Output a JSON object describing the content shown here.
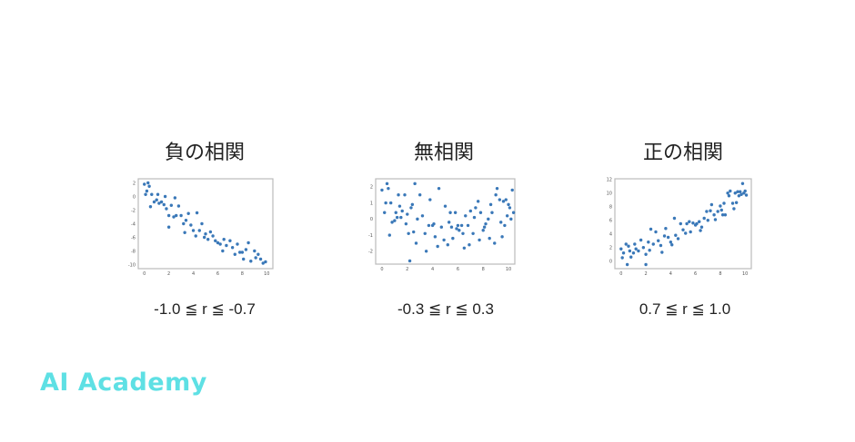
{
  "colors": {
    "point": "#3a78b8",
    "logo": "#5ee0e4",
    "frame": "#bbbbbb"
  },
  "logo": {
    "text": "AI Academy"
  },
  "chart_data": [
    {
      "type": "scatter",
      "title": "負の相関",
      "caption": "-1.0 ≦ r ≦ -0.7",
      "xlim": [
        -0.5,
        10.5
      ],
      "ylim": [
        -10.6,
        2.6
      ],
      "xticks": [
        0,
        2,
        4,
        6,
        8,
        10
      ],
      "yticks": [
        2,
        0,
        -2,
        -4,
        -6,
        -8,
        -10
      ],
      "grid": false,
      "points": [
        [
          0,
          1.8
        ],
        [
          0.3,
          2
        ],
        [
          0.4,
          1.5
        ],
        [
          0.1,
          0.3
        ],
        [
          0.2,
          0.8
        ],
        [
          0.5,
          -1.5
        ],
        [
          0.6,
          0.3
        ],
        [
          0.8,
          -0.8
        ],
        [
          1,
          -0.5
        ],
        [
          1.1,
          0.3
        ],
        [
          1.2,
          -1
        ],
        [
          1.4,
          -0.8
        ],
        [
          1.6,
          -1.2
        ],
        [
          1.7,
          0
        ],
        [
          1.8,
          -1.8
        ],
        [
          2,
          -2.8
        ],
        [
          2,
          -4.5
        ],
        [
          2.2,
          -1.3
        ],
        [
          2.4,
          -3
        ],
        [
          2.5,
          -0.2
        ],
        [
          2.6,
          -2.8
        ],
        [
          2.8,
          -1.4
        ],
        [
          3,
          -2.8
        ],
        [
          3.2,
          -4
        ],
        [
          3.3,
          -5.3
        ],
        [
          3.4,
          -3.5
        ],
        [
          3.6,
          -2.5
        ],
        [
          3.8,
          -4.2
        ],
        [
          4,
          -5
        ],
        [
          4.2,
          -5.8
        ],
        [
          4.3,
          -2.4
        ],
        [
          4.5,
          -5
        ],
        [
          4.7,
          -4
        ],
        [
          4.9,
          -6
        ],
        [
          5,
          -5.5
        ],
        [
          5.2,
          -6.3
        ],
        [
          5.4,
          -5.2
        ],
        [
          5.6,
          -5.8
        ],
        [
          5.8,
          -6.5
        ],
        [
          6,
          -6.8
        ],
        [
          6.2,
          -7
        ],
        [
          6.4,
          -8
        ],
        [
          6.5,
          -6.3
        ],
        [
          6.7,
          -7.2
        ],
        [
          7,
          -6.5
        ],
        [
          7.2,
          -7.5
        ],
        [
          7.4,
          -8.5
        ],
        [
          7.6,
          -7
        ],
        [
          7.8,
          -8.2
        ],
        [
          8,
          -8.2
        ],
        [
          8.1,
          -9.2
        ],
        [
          8.3,
          -7.8
        ],
        [
          8.5,
          -6.8
        ],
        [
          8.7,
          -9.5
        ],
        [
          9,
          -8
        ],
        [
          9.1,
          -9
        ],
        [
          9.3,
          -8.5
        ],
        [
          9.5,
          -9.2
        ],
        [
          9.7,
          -9.8
        ],
        [
          9.9,
          -9.6
        ]
      ]
    },
    {
      "type": "scatter",
      "title": "無相関",
      "caption": "-0.3 ≦ r ≦ 0.3",
      "xlim": [
        -0.5,
        10.5
      ],
      "ylim": [
        -2.8,
        2.5
      ],
      "xticks": [
        0,
        2,
        4,
        6,
        8,
        10
      ],
      "yticks": [
        2,
        1,
        0,
        -1,
        -2
      ],
      "grid": false,
      "points": [
        [
          0,
          1.8
        ],
        [
          0.2,
          0.4
        ],
        [
          0.3,
          1
        ],
        [
          0.4,
          2.2
        ],
        [
          0.5,
          1.9
        ],
        [
          0.6,
          -1
        ],
        [
          0.7,
          1
        ],
        [
          0.8,
          -0.2
        ],
        [
          1,
          -0.1
        ],
        [
          1.1,
          0.4
        ],
        [
          1.2,
          0.1
        ],
        [
          1.3,
          1.5
        ],
        [
          1.4,
          0.8
        ],
        [
          1.5,
          0.1
        ],
        [
          1.6,
          0.5
        ],
        [
          1.8,
          1.5
        ],
        [
          1.9,
          -0.3
        ],
        [
          2,
          0.3
        ],
        [
          2.1,
          -0.9
        ],
        [
          2.2,
          -2.6
        ],
        [
          2.3,
          0.7
        ],
        [
          2.4,
          0.9
        ],
        [
          2.5,
          -0.8
        ],
        [
          2.6,
          2.2
        ],
        [
          2.7,
          -1.5
        ],
        [
          2.8,
          0
        ],
        [
          3,
          1.5
        ],
        [
          3.2,
          0.2
        ],
        [
          3.4,
          -0.9
        ],
        [
          3.5,
          -2
        ],
        [
          3.7,
          -0.4
        ],
        [
          3.8,
          1.2
        ],
        [
          4,
          -0.4
        ],
        [
          4.1,
          -0.3
        ],
        [
          4.2,
          -1.1
        ],
        [
          4.4,
          -1.7
        ],
        [
          4.5,
          1.9
        ],
        [
          4.7,
          -0.5
        ],
        [
          4.9,
          -1.3
        ],
        [
          5,
          0.8
        ],
        [
          5.2,
          -1.6
        ],
        [
          5.3,
          -0.2
        ],
        [
          5.4,
          0.4
        ],
        [
          5.5,
          -0.5
        ],
        [
          5.6,
          -1.2
        ],
        [
          5.8,
          0.4
        ],
        [
          5.9,
          -0.6
        ],
        [
          6,
          -0.4
        ],
        [
          6.1,
          -0.7
        ],
        [
          6.3,
          -0.4
        ],
        [
          6.4,
          -0.9
        ],
        [
          6.5,
          -1.8
        ],
        [
          6.6,
          0.2
        ],
        [
          6.8,
          -0.4
        ],
        [
          6.9,
          -1.6
        ],
        [
          7,
          0.5
        ],
        [
          7.2,
          -0.9
        ],
        [
          7.3,
          0.1
        ],
        [
          7.4,
          0.7
        ],
        [
          7.6,
          1.1
        ],
        [
          7.7,
          -1.3
        ],
        [
          7.8,
          0.4
        ],
        [
          8,
          -0.7
        ],
        [
          8.1,
          -0.5
        ],
        [
          8.2,
          -0.3
        ],
        [
          8.4,
          0
        ],
        [
          8.5,
          -1.2
        ],
        [
          8.6,
          0.9
        ],
        [
          8.7,
          0.4
        ],
        [
          8.9,
          -1.5
        ],
        [
          9,
          1.5
        ],
        [
          9.1,
          1.9
        ],
        [
          9.3,
          1.2
        ],
        [
          9.4,
          -0.2
        ],
        [
          9.5,
          -1.1
        ],
        [
          9.6,
          1.1
        ],
        [
          9.7,
          -0.4
        ],
        [
          9.8,
          1.2
        ],
        [
          9.9,
          0.2
        ],
        [
          10,
          0.9
        ],
        [
          10.1,
          0.7
        ],
        [
          10.2,
          0
        ],
        [
          10.3,
          1.8
        ],
        [
          10.4,
          0.4
        ]
      ]
    },
    {
      "type": "scatter",
      "title": "正の相関",
      "caption": "0.7 ≦ r ≦ 1.0",
      "xlim": [
        -0.5,
        10.5
      ],
      "ylim": [
        -1.1,
        12.1
      ],
      "xticks": [
        0,
        2,
        4,
        6,
        8,
        10
      ],
      "yticks": [
        12,
        10,
        8,
        6,
        4,
        2,
        0
      ],
      "grid": false,
      "points": [
        [
          0,
          1.8
        ],
        [
          0.1,
          0.5
        ],
        [
          0.2,
          1.2
        ],
        [
          0.4,
          2.5
        ],
        [
          0.5,
          -0.5
        ],
        [
          0.6,
          2.2
        ],
        [
          0.7,
          1.5
        ],
        [
          0.8,
          0.6
        ],
        [
          1,
          1.2
        ],
        [
          1.1,
          2.5
        ],
        [
          1.2,
          1.8
        ],
        [
          1.4,
          1.5
        ],
        [
          1.6,
          3.1
        ],
        [
          1.8,
          2
        ],
        [
          2,
          -0.5
        ],
        [
          2,
          1
        ],
        [
          2.2,
          2.8
        ],
        [
          2.3,
          1.6
        ],
        [
          2.4,
          4.7
        ],
        [
          2.6,
          2.5
        ],
        [
          2.8,
          4.3
        ],
        [
          3,
          3
        ],
        [
          3.2,
          2.3
        ],
        [
          3.3,
          1.3
        ],
        [
          3.5,
          3.7
        ],
        [
          3.6,
          4.8
        ],
        [
          3.8,
          3.5
        ],
        [
          4,
          2.8
        ],
        [
          4.1,
          2.4
        ],
        [
          4.3,
          6.3
        ],
        [
          4.4,
          3.8
        ],
        [
          4.6,
          3.3
        ],
        [
          4.8,
          5.5
        ],
        [
          5,
          4.6
        ],
        [
          5.2,
          4.1
        ],
        [
          5.3,
          5.5
        ],
        [
          5.5,
          5.8
        ],
        [
          5.6,
          4.3
        ],
        [
          5.8,
          5.6
        ],
        [
          6,
          5.3
        ],
        [
          6.1,
          5.5
        ],
        [
          6.3,
          5.8
        ],
        [
          6.4,
          4.5
        ],
        [
          6.5,
          5
        ],
        [
          6.7,
          6.3
        ],
        [
          6.9,
          7.3
        ],
        [
          7,
          6
        ],
        [
          7.2,
          7.4
        ],
        [
          7.3,
          8.3
        ],
        [
          7.5,
          6.8
        ],
        [
          7.6,
          6.1
        ],
        [
          7.8,
          7.3
        ],
        [
          8,
          8.1
        ],
        [
          8.1,
          7.5
        ],
        [
          8.2,
          6.8
        ],
        [
          8.3,
          8.5
        ],
        [
          8.4,
          6.8
        ],
        [
          8.6,
          10
        ],
        [
          8.7,
          9.6
        ],
        [
          8.8,
          10.3
        ],
        [
          9,
          8.5
        ],
        [
          9.1,
          7.7
        ],
        [
          9.2,
          10
        ],
        [
          9.3,
          8.6
        ],
        [
          9.4,
          10.2
        ],
        [
          9.5,
          9.6
        ],
        [
          9.6,
          10.2
        ],
        [
          9.7,
          9.8
        ],
        [
          9.8,
          11.4
        ],
        [
          9.9,
          10
        ],
        [
          10,
          10.3
        ],
        [
          10.1,
          9.7
        ]
      ]
    }
  ]
}
